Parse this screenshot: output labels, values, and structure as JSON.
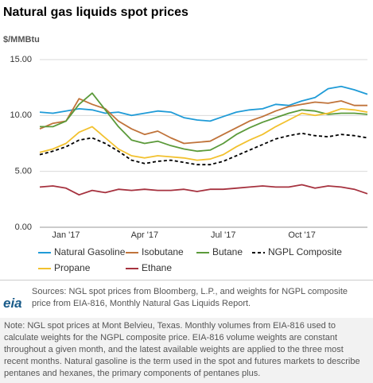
{
  "chart_data": {
    "type": "line",
    "title": "Natural gas liquids spot prices",
    "ylabel": "$/MMBtu",
    "categories": [
      null,
      null,
      "Jan '17",
      null,
      null,
      null,
      null,
      null,
      "Apr '17",
      null,
      null,
      null,
      null,
      null,
      "Jul '17",
      null,
      null,
      null,
      null,
      null,
      "Oct '17",
      null,
      null,
      null,
      null,
      null
    ],
    "ylim": [
      0,
      15
    ],
    "yticks": [
      {
        "value": 0,
        "label": "0.00"
      },
      {
        "value": 5,
        "label": "5.00"
      },
      {
        "value": 10,
        "label": "10.00"
      },
      {
        "value": 15,
        "label": "15.00"
      }
    ],
    "grid": true,
    "series": [
      {
        "name": "Natural Gasoline",
        "color": "#1f9bd7",
        "values": [
          10.3,
          10.2,
          10.4,
          10.6,
          10.5,
          10.2,
          10.3,
          10.0,
          10.2,
          10.4,
          10.3,
          9.8,
          9.6,
          9.5,
          9.9,
          10.3,
          10.5,
          10.6,
          11.0,
          10.9,
          11.3,
          11.6,
          12.4,
          12.6,
          12.3,
          11.9
        ]
      },
      {
        "name": "Isobutane",
        "color": "#c0733a",
        "values": [
          8.8,
          9.3,
          9.5,
          11.5,
          11.0,
          10.6,
          9.5,
          8.8,
          8.3,
          8.6,
          8.0,
          7.5,
          7.6,
          7.7,
          8.3,
          8.9,
          9.5,
          9.9,
          10.4,
          10.8,
          11.0,
          11.2,
          11.1,
          11.3,
          10.9,
          10.9
        ]
      },
      {
        "name": "Butane",
        "color": "#5b9a3a",
        "values": [
          9.0,
          9.0,
          9.5,
          11.0,
          12.0,
          10.5,
          9.0,
          7.8,
          7.5,
          7.7,
          7.3,
          7.0,
          6.8,
          6.9,
          7.5,
          8.3,
          8.9,
          9.4,
          9.8,
          10.2,
          10.5,
          10.4,
          10.1,
          10.2,
          10.2,
          10.1
        ]
      },
      {
        "name": "NGPL Composite",
        "color": "#000000",
        "style": "dashed",
        "values": [
          6.5,
          6.8,
          7.2,
          7.8,
          8.0,
          7.5,
          6.8,
          6.0,
          5.7,
          5.9,
          6.0,
          5.8,
          5.6,
          5.6,
          5.9,
          6.4,
          6.9,
          7.4,
          7.9,
          8.2,
          8.4,
          8.2,
          8.1,
          8.3,
          8.2,
          8.0
        ]
      },
      {
        "name": "Propane",
        "color": "#f2c12e",
        "values": [
          6.7,
          7.0,
          7.5,
          8.5,
          9.0,
          8.0,
          7.0,
          6.4,
          6.2,
          6.4,
          6.3,
          6.2,
          6.0,
          6.1,
          6.5,
          7.2,
          7.8,
          8.3,
          9.0,
          9.6,
          10.2,
          10.0,
          10.2,
          10.6,
          10.5,
          10.3
        ]
      },
      {
        "name": "Ethane",
        "color": "#a6323f",
        "values": [
          3.6,
          3.7,
          3.5,
          2.9,
          3.3,
          3.1,
          3.4,
          3.3,
          3.4,
          3.3,
          3.3,
          3.4,
          3.2,
          3.4,
          3.4,
          3.5,
          3.6,
          3.7,
          3.6,
          3.6,
          3.8,
          3.5,
          3.7,
          3.6,
          3.4,
          3.0
        ]
      }
    ],
    "logo": "eia",
    "sources": "Sources: NGL spot prices from Bloomberg, L.P., and weights for NGPL composite price from EIA-816, Monthly Natural Gas Liquids Report.",
    "note": "Note: NGL spot prices at Mont Belvieu, Texas. Monthly volumes from EIA-816 used to calculate weights for the NGPL composite price. EIA-816 volume weights are constant throughout a given month, and the latest available weights are applied to the three most recent months. Natural gasoline is the term used in the spot and futures markets to describe pentanes and hexanes, the primary components of pentanes plus."
  }
}
